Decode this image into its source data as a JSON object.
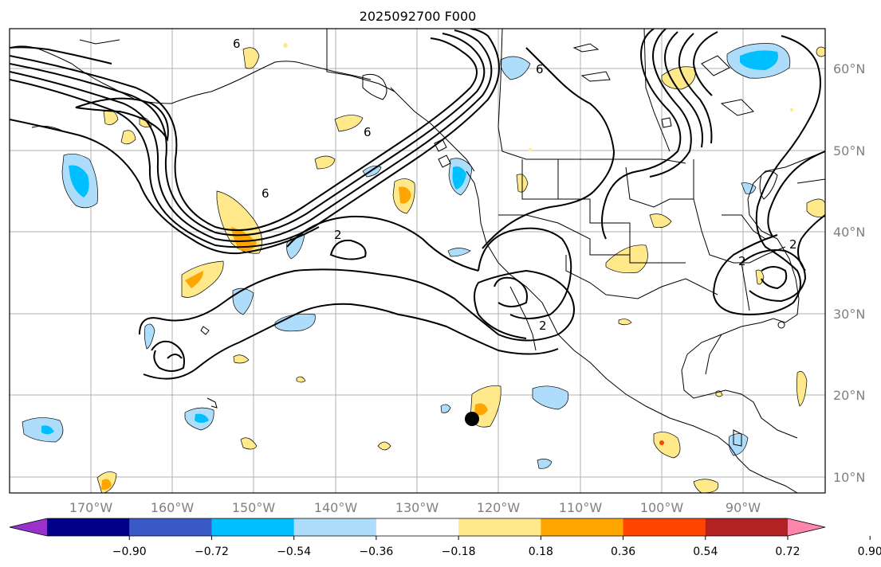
{
  "title": "2025092700 F000",
  "map": {
    "lon_ticks": [
      "170°W",
      "160°W",
      "150°W",
      "140°W",
      "130°W",
      "120°W",
      "110°W",
      "100°W",
      "90°W"
    ],
    "lat_ticks": [
      "60°N",
      "50°N",
      "40°N",
      "30°N",
      "20°N",
      "10°N"
    ],
    "contour_labels": [
      "6",
      "6",
      "6",
      "6",
      "2",
      "2",
      "2",
      "2"
    ]
  },
  "colorbar": {
    "colors": [
      "#9932cc",
      "#00008b",
      "#3a5bc7",
      "#00bfff",
      "#aedcfb",
      "#ffffff",
      "#ffe98a",
      "#ffa500",
      "#ff4500",
      "#b22222",
      "#ff85ad"
    ],
    "labels": [
      "−0.90",
      "−0.72",
      "−0.54",
      "−0.36",
      "−0.18",
      "0.18",
      "0.36",
      "0.54",
      "0.72",
      "0.90"
    ]
  },
  "marker": {
    "lon_label": "",
    "shown": true
  }
}
